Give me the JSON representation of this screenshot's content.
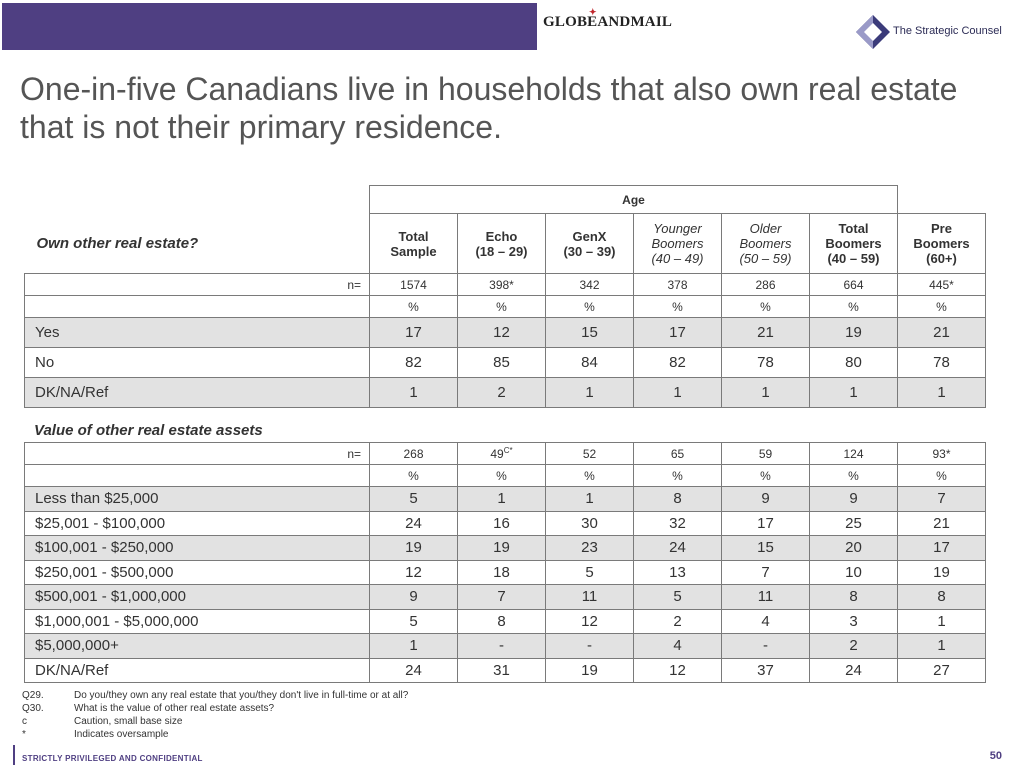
{
  "header": {
    "newspaper_logo": "GLOBEANDMAIL",
    "firm_logo": "The Strategic Counsel",
    "colors": {
      "bar": "#4f3f82",
      "shade": "#e2e2e2"
    }
  },
  "title": "One-in-five Canadians live in households that also own real estate that is not their primary residence.",
  "table1": {
    "question": "Own other real estate?",
    "age_group_label": "Age",
    "columns": [
      {
        "l1": "Total",
        "l2": "Sample",
        "l3": ""
      },
      {
        "l1": "Echo",
        "l2": "(18 – 29)",
        "l3": ""
      },
      {
        "l1": "GenX",
        "l2": "(30 – 39)",
        "l3": ""
      },
      {
        "l1": "Younger",
        "l2": "Boomers",
        "l3": "(40 – 49)"
      },
      {
        "l1": "Older",
        "l2": "Boomers",
        "l3": "(50 – 59)"
      },
      {
        "l1": "Total",
        "l2": "Boomers",
        "l3": "(40 – 59)"
      },
      {
        "l1": "Pre",
        "l2": "Boomers",
        "l3": "(60+)"
      }
    ],
    "n_label": "n=",
    "n": [
      "1574",
      "398*",
      "342",
      "378",
      "286",
      "664",
      "445*"
    ],
    "pct": [
      "%",
      "%",
      "%",
      "%",
      "%",
      "%",
      "%"
    ],
    "rows": [
      {
        "label": "Yes",
        "values": [
          "17",
          "12",
          "15",
          "17",
          "21",
          "19",
          "21"
        ]
      },
      {
        "label": "No",
        "values": [
          "82",
          "85",
          "84",
          "82",
          "78",
          "80",
          "78"
        ]
      },
      {
        "label": "DK/NA/Ref",
        "values": [
          "1",
          "2",
          "1",
          "1",
          "1",
          "1",
          "1"
        ]
      }
    ]
  },
  "table2": {
    "title": "Value of other real estate assets",
    "n_label": "n=",
    "n": [
      "268",
      "49",
      "52",
      "65",
      "59",
      "124",
      "93*"
    ],
    "n_echo_sup": "C*",
    "pct": [
      "%",
      "%",
      "%",
      "%",
      "%",
      "%",
      "%"
    ],
    "rows": [
      {
        "label": "Less than $25,000",
        "values": [
          "5",
          "1",
          "1",
          "8",
          "9",
          "9",
          "7"
        ]
      },
      {
        "label": "$25,001 - $100,000",
        "values": [
          "24",
          "16",
          "30",
          "32",
          "17",
          "25",
          "21"
        ]
      },
      {
        "label": "$100,001 - $250,000",
        "values": [
          "19",
          "19",
          "23",
          "24",
          "15",
          "20",
          "17"
        ]
      },
      {
        "label": "$250,001 - $500,000",
        "values": [
          "12",
          "18",
          "5",
          "13",
          "7",
          "10",
          "19"
        ]
      },
      {
        "label": "$500,001 - $1,000,000",
        "values": [
          "9",
          "7",
          "11",
          "5",
          "11",
          "8",
          "8"
        ]
      },
      {
        "label": "$1,000,001 - $5,000,000",
        "values": [
          "5",
          "8",
          "12",
          "2",
          "4",
          "3",
          "1"
        ]
      },
      {
        "label": "$5,000,000+",
        "values": [
          "1",
          "-",
          "-",
          "4",
          "-",
          "2",
          "1"
        ]
      },
      {
        "label": "DK/NA/Ref",
        "values": [
          "24",
          "31",
          "19",
          "12",
          "37",
          "24",
          "27"
        ]
      }
    ]
  },
  "notes": [
    {
      "key": "Q29.",
      "text": "Do you/they own any real estate that you/they don't live in full-time or at all?"
    },
    {
      "key": "Q30.",
      "text": "What is the value of other real estate assets?"
    },
    {
      "key": "c",
      "text": "Caution, small base size"
    },
    {
      "key": "*",
      "text": "Indicates oversample"
    }
  ],
  "footer": {
    "confidential": "STRICTLY PRIVILEGED AND CONFIDENTIAL",
    "page": "50"
  }
}
